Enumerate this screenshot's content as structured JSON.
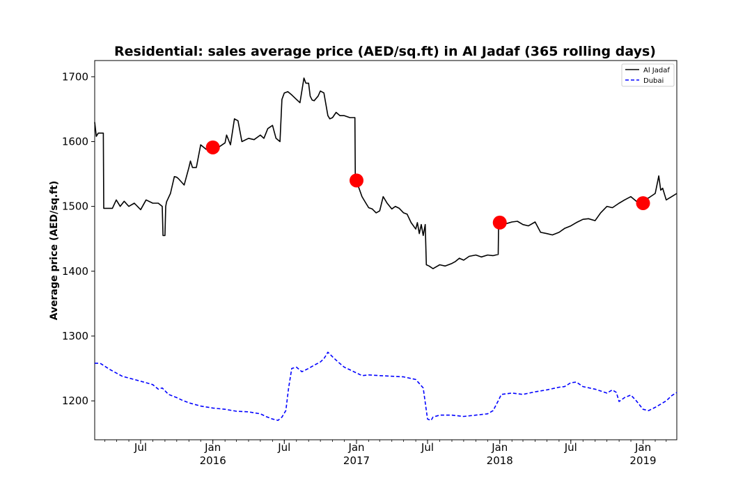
{
  "chart_data": {
    "type": "line",
    "title": "Residential: sales average price (AED/sq.ft) in Al Jadaf (365 rolling days)",
    "xlabel": "",
    "ylabel": "Average price (AED/sq.ft)",
    "xlim": [
      "2015-03-06",
      "2019-03-28"
    ],
    "ylim": [
      1140,
      1725
    ],
    "yticks": [
      1200,
      1300,
      1400,
      1500,
      1600,
      1700
    ],
    "xticks": [
      {
        "date": "2015-07-01",
        "labels": [
          "Jul"
        ]
      },
      {
        "date": "2016-01-01",
        "labels": [
          "Jan",
          "2016"
        ]
      },
      {
        "date": "2016-07-01",
        "labels": [
          "Jul"
        ]
      },
      {
        "date": "2017-01-01",
        "labels": [
          "Jan",
          "2017"
        ]
      },
      {
        "date": "2017-07-01",
        "labels": [
          "Jul"
        ]
      },
      {
        "date": "2018-01-01",
        "labels": [
          "Jan",
          "2018"
        ]
      },
      {
        "date": "2018-07-01",
        "labels": [
          "Jul"
        ]
      },
      {
        "date": "2019-01-01",
        "labels": [
          "Jan",
          "2019"
        ]
      }
    ],
    "grid": false,
    "legend_position": "top-right",
    "series": [
      {
        "name": "Al Jadaf",
        "color": "#000000",
        "style": "solid",
        "x": [
          "2015-03-06",
          "2015-03-10",
          "2015-03-15",
          "2015-03-28",
          "2015-03-29",
          "2015-04-20",
          "2015-04-30",
          "2015-05-10",
          "2015-05-20",
          "2015-06-01",
          "2015-06-15",
          "2015-07-01",
          "2015-07-15",
          "2015-08-01",
          "2015-08-15",
          "2015-08-25",
          "2015-08-27",
          "2015-09-01",
          "2015-09-03",
          "2015-09-05",
          "2015-09-15",
          "2015-09-25",
          "2015-10-01",
          "2015-10-05",
          "2015-10-20",
          "2015-11-01",
          "2015-11-05",
          "2015-11-10",
          "2015-11-20",
          "2015-12-01",
          "2015-12-15",
          "2016-01-01",
          "2016-01-15",
          "2016-02-01",
          "2016-02-05",
          "2016-02-15",
          "2016-02-25",
          "2016-03-05",
          "2016-03-15",
          "2016-04-01",
          "2016-04-15",
          "2016-05-01",
          "2016-05-10",
          "2016-05-20",
          "2016-06-01",
          "2016-06-10",
          "2016-06-20",
          "2016-06-25",
          "2016-06-28",
          "2016-07-01",
          "2016-07-10",
          "2016-07-20",
          "2016-08-01",
          "2016-08-10",
          "2016-08-20",
          "2016-08-25",
          "2016-09-01",
          "2016-09-05",
          "2016-09-10",
          "2016-09-15",
          "2016-09-25",
          "2016-10-01",
          "2016-10-10",
          "2016-10-20",
          "2016-10-25",
          "2016-11-01",
          "2016-11-10",
          "2016-11-20",
          "2016-12-01",
          "2016-12-15",
          "2016-12-28",
          "2016-12-29",
          "2017-01-05",
          "2017-01-15",
          "2017-01-25",
          "2017-02-01",
          "2017-02-10",
          "2017-02-20",
          "2017-03-01",
          "2017-03-10",
          "2017-03-20",
          "2017-04-01",
          "2017-04-10",
          "2017-04-20",
          "2017-05-01",
          "2017-05-10",
          "2017-05-20",
          "2017-06-01",
          "2017-06-05",
          "2017-06-10",
          "2017-06-15",
          "2017-06-20",
          "2017-06-25",
          "2017-06-28",
          "2017-07-05",
          "2017-07-15",
          "2017-08-01",
          "2017-08-15",
          "2017-09-01",
          "2017-09-10",
          "2017-09-20",
          "2017-10-01",
          "2017-10-15",
          "2017-11-01",
          "2017-11-15",
          "2017-12-01",
          "2017-12-15",
          "2017-12-28",
          "2017-12-29",
          "2018-01-15",
          "2018-02-01",
          "2018-02-15",
          "2018-03-01",
          "2018-03-15",
          "2018-04-01",
          "2018-04-15",
          "2018-05-01",
          "2018-05-15",
          "2018-06-01",
          "2018-06-15",
          "2018-07-01",
          "2018-07-15",
          "2018-08-01",
          "2018-08-15",
          "2018-09-01",
          "2018-09-15",
          "2018-10-01",
          "2018-10-15",
          "2018-11-01",
          "2018-11-15",
          "2018-12-01",
          "2018-12-15",
          "2019-01-01",
          "2019-01-15",
          "2019-02-01",
          "2019-02-05",
          "2019-02-10",
          "2019-02-15",
          "2019-02-20",
          "2019-03-01",
          "2019-03-15",
          "2019-03-28"
        ],
        "y": [
          1630,
          1608,
          1613,
          1613,
          1497,
          1497,
          1510,
          1500,
          1508,
          1500,
          1505,
          1495,
          1510,
          1505,
          1505,
          1500,
          1455,
          1455,
          1500,
          1507,
          1520,
          1546,
          1545,
          1543,
          1533,
          1560,
          1570,
          1560,
          1560,
          1595,
          1588,
          1590,
          1591,
          1598,
          1610,
          1595,
          1635,
          1632,
          1600,
          1605,
          1603,
          1610,
          1605,
          1620,
          1625,
          1605,
          1600,
          1665,
          1670,
          1675,
          1677,
          1672,
          1665,
          1660,
          1698,
          1690,
          1690,
          1670,
          1664,
          1663,
          1670,
          1678,
          1675,
          1640,
          1635,
          1637,
          1645,
          1640,
          1640,
          1637,
          1637,
          1540,
          1532,
          1515,
          1505,
          1498,
          1496,
          1490,
          1493,
          1515,
          1505,
          1496,
          1500,
          1497,
          1490,
          1488,
          1475,
          1465,
          1475,
          1458,
          1472,
          1455,
          1472,
          1410,
          1408,
          1404,
          1410,
          1408,
          1412,
          1415,
          1420,
          1417,
          1423,
          1425,
          1422,
          1425,
          1424,
          1426,
          1475,
          1473,
          1476,
          1477,
          1472,
          1470,
          1476,
          1460,
          1458,
          1456,
          1460,
          1466,
          1470,
          1475,
          1480,
          1481,
          1478,
          1490,
          1500,
          1498,
          1505,
          1510,
          1515,
          1508,
          1510,
          1513,
          1520,
          1532,
          1547,
          1525,
          1528,
          1510,
          1515,
          1520
        ]
      },
      {
        "name": "Dubai",
        "color": "#0000ff",
        "style": "dashed",
        "x": [
          "2015-03-06",
          "2015-03-20",
          "2015-04-15",
          "2015-05-15",
          "2015-06-15",
          "2015-07-15",
          "2015-08-01",
          "2015-08-15",
          "2015-08-25",
          "2015-09-10",
          "2015-10-01",
          "2015-10-15",
          "2015-11-01",
          "2015-12-01",
          "2016-01-01",
          "2016-02-01",
          "2016-03-01",
          "2016-04-01",
          "2016-05-01",
          "2016-05-15",
          "2016-06-01",
          "2016-06-15",
          "2016-06-25",
          "2016-07-05",
          "2016-07-12",
          "2016-07-20",
          "2016-08-01",
          "2016-08-15",
          "2016-09-01",
          "2016-09-15",
          "2016-10-01",
          "2016-10-10",
          "2016-10-20",
          "2016-11-01",
          "2016-11-15",
          "2016-12-01",
          "2016-12-15",
          "2017-01-01",
          "2017-01-15",
          "2017-02-01",
          "2017-03-01",
          "2017-04-01",
          "2017-05-01",
          "2017-06-01",
          "2017-06-20",
          "2017-07-01",
          "2017-07-10",
          "2017-07-15",
          "2017-08-01",
          "2017-09-01",
          "2017-10-01",
          "2017-11-01",
          "2017-12-01",
          "2017-12-15",
          "2017-12-28",
          "2018-01-05",
          "2018-02-01",
          "2018-03-01",
          "2018-04-01",
          "2018-05-01",
          "2018-06-01",
          "2018-06-15",
          "2018-07-01",
          "2018-07-15",
          "2018-08-01",
          "2018-09-01",
          "2018-10-01",
          "2018-10-15",
          "2018-10-25",
          "2018-11-01",
          "2018-11-15",
          "2018-12-01",
          "2018-12-15",
          "2019-01-01",
          "2019-01-15",
          "2019-02-01",
          "2019-02-15",
          "2019-03-01",
          "2019-03-15",
          "2019-03-28"
        ],
        "y": [
          1258,
          1258,
          1248,
          1238,
          1233,
          1228,
          1225,
          1218,
          1220,
          1210,
          1205,
          1201,
          1197,
          1192,
          1189,
          1187,
          1184,
          1183,
          1180,
          1176,
          1172,
          1170,
          1175,
          1185,
          1220,
          1250,
          1252,
          1245,
          1250,
          1255,
          1260,
          1265,
          1275,
          1268,
          1260,
          1252,
          1248,
          1243,
          1239,
          1240,
          1239,
          1238,
          1237,
          1233,
          1220,
          1172,
          1170,
          1175,
          1178,
          1178,
          1176,
          1178,
          1180,
          1185,
          1200,
          1210,
          1212,
          1210,
          1214,
          1217,
          1221,
          1222,
          1228,
          1229,
          1222,
          1218,
          1212,
          1217,
          1213,
          1199,
          1205,
          1209,
          1200,
          1187,
          1185,
          1190,
          1195,
          1200,
          1208,
          1213
        ]
      }
    ],
    "markers": {
      "color": "#ff0000",
      "points": [
        {
          "x": "2016-01-01",
          "y": 1591
        },
        {
          "x": "2017-01-01",
          "y": 1540
        },
        {
          "x": "2018-01-01",
          "y": 1475
        },
        {
          "x": "2019-01-01",
          "y": 1505
        }
      ]
    }
  }
}
